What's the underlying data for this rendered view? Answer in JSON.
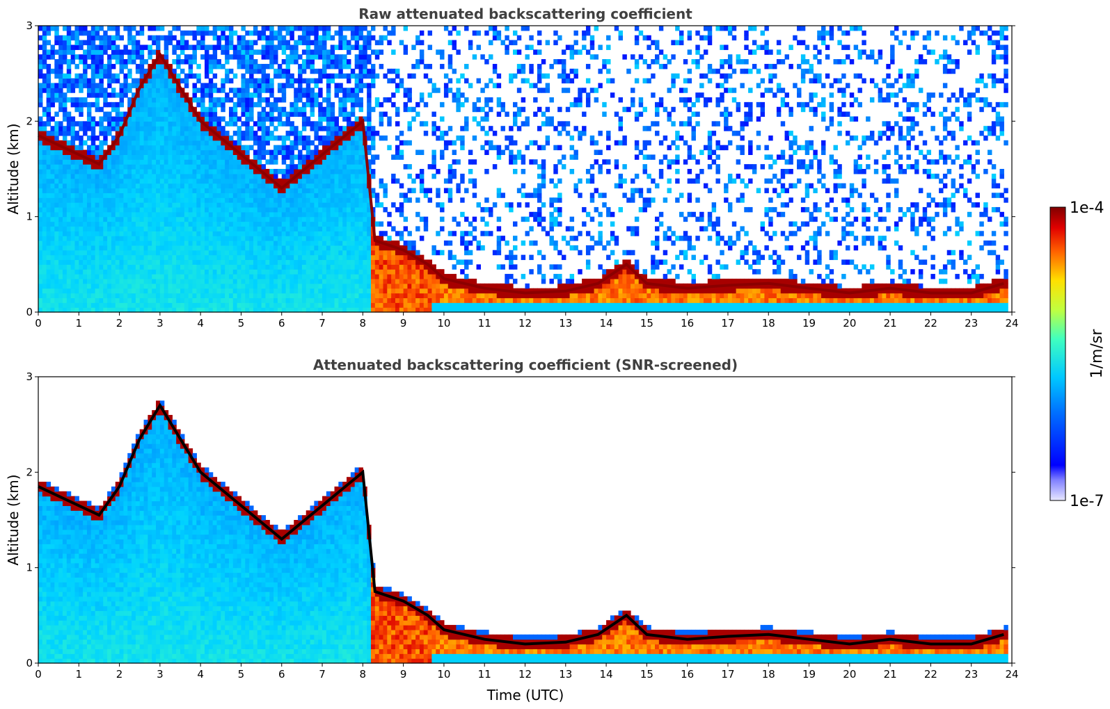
{
  "chart_data": [
    {
      "type": "heatmap",
      "title": "Raw attenuated backscattering coefficient",
      "xlabel": "",
      "ylabel": "Altitude (km)",
      "xlim": [
        0,
        24
      ],
      "ylim": [
        0,
        3
      ],
      "xticks": [
        "0",
        "1",
        "2",
        "3",
        "4",
        "5",
        "6",
        "7",
        "8",
        "9",
        "10",
        "11",
        "12",
        "13",
        "14",
        "15",
        "16",
        "17",
        "18",
        "19",
        "20",
        "21",
        "22",
        "23",
        "24"
      ],
      "yticks": [
        "0",
        "1",
        "2",
        "3"
      ],
      "colormap": "jet",
      "color_scale": "log",
      "value_range": [
        "1e-7",
        "1e-4"
      ],
      "layer_height_km": [
        [
          0.0,
          1.85
        ],
        [
          0.5,
          1.75
        ],
        [
          1.0,
          1.65
        ],
        [
          1.5,
          1.55
        ],
        [
          2.0,
          1.85
        ],
        [
          2.5,
          2.35
        ],
        [
          3.0,
          2.7
        ],
        [
          4.0,
          2.0
        ],
        [
          6.0,
          1.3
        ],
        [
          8.0,
          2.0
        ],
        [
          8.3,
          0.75
        ],
        [
          9.0,
          0.65
        ],
        [
          9.6,
          0.5
        ],
        [
          10.0,
          0.35
        ],
        [
          11.0,
          0.25
        ],
        [
          12.0,
          0.2
        ],
        [
          13.0,
          0.22
        ],
        [
          13.8,
          0.3
        ],
        [
          14.5,
          0.5
        ],
        [
          15.0,
          0.3
        ],
        [
          16.0,
          0.25
        ],
        [
          17.0,
          0.28
        ],
        [
          18.0,
          0.3
        ],
        [
          19.0,
          0.25
        ],
        [
          20.0,
          0.2
        ],
        [
          21.0,
          0.25
        ],
        [
          22.0,
          0.2
        ],
        [
          23.0,
          0.2
        ],
        [
          23.8,
          0.3
        ]
      ]
    },
    {
      "type": "heatmap",
      "title": "Attenuated backscattering coefficient (SNR-screened)",
      "xlabel": "Time (UTC)",
      "ylabel": "Altitude (km)",
      "xlim": [
        0,
        24
      ],
      "ylim": [
        0,
        3
      ],
      "xticks": [
        "0",
        "1",
        "2",
        "3",
        "4",
        "5",
        "6",
        "7",
        "8",
        "9",
        "10",
        "11",
        "12",
        "13",
        "14",
        "15",
        "16",
        "17",
        "18",
        "19",
        "20",
        "21",
        "22",
        "23",
        "24"
      ],
      "yticks": [
        "0",
        "1",
        "2",
        "3"
      ],
      "colormap": "jet",
      "color_scale": "log",
      "value_range": [
        "1e-7",
        "1e-4"
      ],
      "screening": "SNR-screened",
      "layer_height_km": [
        [
          0.0,
          1.85
        ],
        [
          0.5,
          1.75
        ],
        [
          1.0,
          1.65
        ],
        [
          1.5,
          1.55
        ],
        [
          2.0,
          1.85
        ],
        [
          2.5,
          2.35
        ],
        [
          3.0,
          2.7
        ],
        [
          4.0,
          2.0
        ],
        [
          6.0,
          1.3
        ],
        [
          8.0,
          2.0
        ],
        [
          8.3,
          0.75
        ],
        [
          9.0,
          0.65
        ],
        [
          9.6,
          0.5
        ],
        [
          10.0,
          0.35
        ],
        [
          11.0,
          0.25
        ],
        [
          12.0,
          0.2
        ],
        [
          13.0,
          0.22
        ],
        [
          13.8,
          0.3
        ],
        [
          14.5,
          0.5
        ],
        [
          15.0,
          0.3
        ],
        [
          16.0,
          0.25
        ],
        [
          17.0,
          0.28
        ],
        [
          18.0,
          0.3
        ],
        [
          19.0,
          0.25
        ],
        [
          20.0,
          0.2
        ],
        [
          21.0,
          0.25
        ],
        [
          22.0,
          0.2
        ],
        [
          23.0,
          0.2
        ],
        [
          23.8,
          0.3
        ]
      ]
    }
  ],
  "colorbar": {
    "label": "1/m/sr",
    "max_label": "1e-4",
    "min_label": "1e-7"
  }
}
